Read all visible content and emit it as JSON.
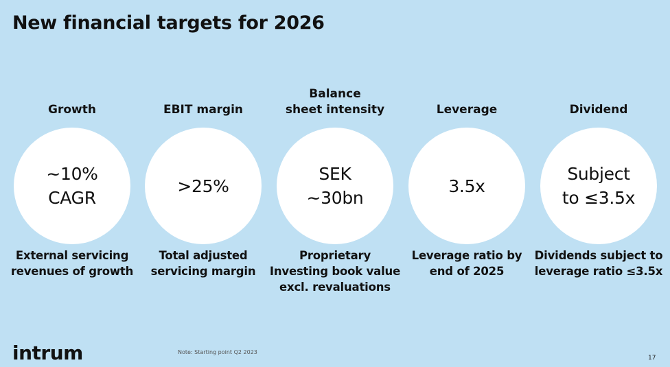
{
  "title": "New financial targets for 2026",
  "targets": [
    {
      "heading": [
        "Growth"
      ],
      "value": [
        "~10%",
        "CAGR"
      ],
      "description": [
        "External servicing",
        "revenues of growth"
      ]
    },
    {
      "heading": [
        "EBIT margin"
      ],
      "value": [
        ">25%"
      ],
      "description": [
        "Total adjusted",
        "servicing margin"
      ]
    },
    {
      "heading": [
        "Balance",
        "sheet intensity"
      ],
      "value": [
        "SEK",
        "~30bn"
      ],
      "description": [
        "Proprietary",
        "Investing book value",
        "excl. revaluations"
      ]
    },
    {
      "heading": [
        "Leverage"
      ],
      "value": [
        "3.5x"
      ],
      "description": [
        "Leverage ratio by",
        "end of 2025"
      ]
    },
    {
      "heading": [
        "Dividend"
      ],
      "value": [
        "Subject",
        "to ≤3.5x"
      ],
      "description": [
        "Dividends subject to",
        "leverage ratio ≤3.5x"
      ]
    }
  ],
  "footer": {
    "logo": "intrum",
    "note": "Note: Starting point Q2 2023",
    "page_number": "17"
  }
}
